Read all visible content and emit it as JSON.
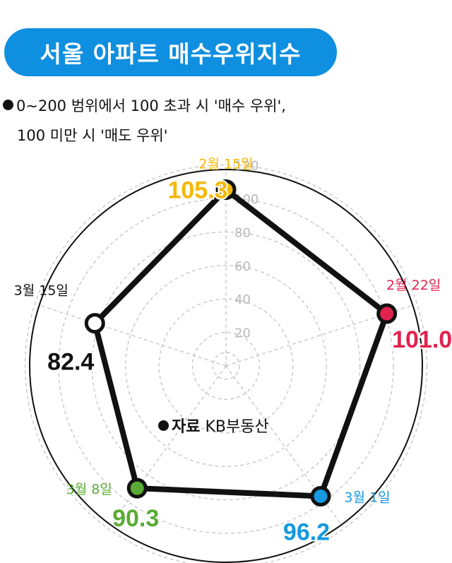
{
  "title": "서울 아파트 매수우위지수",
  "note_line1": "0~200 범위에서 100 초과 시 '매수 우위',",
  "note_line2": "100 미만 시 '매도 우위'",
  "source_label": "자료",
  "source_name": "KB부동산",
  "colors": {
    "title_bg": "#0f8fe0",
    "series_line": "#111111"
  },
  "chart_data": {
    "type": "radar",
    "title": "서울 아파트 매수우위지수",
    "range": [
      0,
      120
    ],
    "ticks": [
      20,
      40,
      60,
      80,
      100,
      120
    ],
    "grid": true,
    "points": [
      {
        "date": "2월 15일",
        "value": 105.3,
        "value_label": "105.3",
        "color": "#f5b800"
      },
      {
        "date": "2월 22일",
        "value": 101.0,
        "value_label": "101.0",
        "color": "#e0234e"
      },
      {
        "date": "3월 1일",
        "value": 96.2,
        "value_label": "96.2",
        "color": "#1599e0"
      },
      {
        "date": "3월 8일",
        "value": 90.3,
        "value_label": "90.3",
        "color": "#5aab33"
      },
      {
        "date": "3월 15일",
        "value": 82.4,
        "value_label": "82.4",
        "color": "#ffffff"
      }
    ]
  }
}
